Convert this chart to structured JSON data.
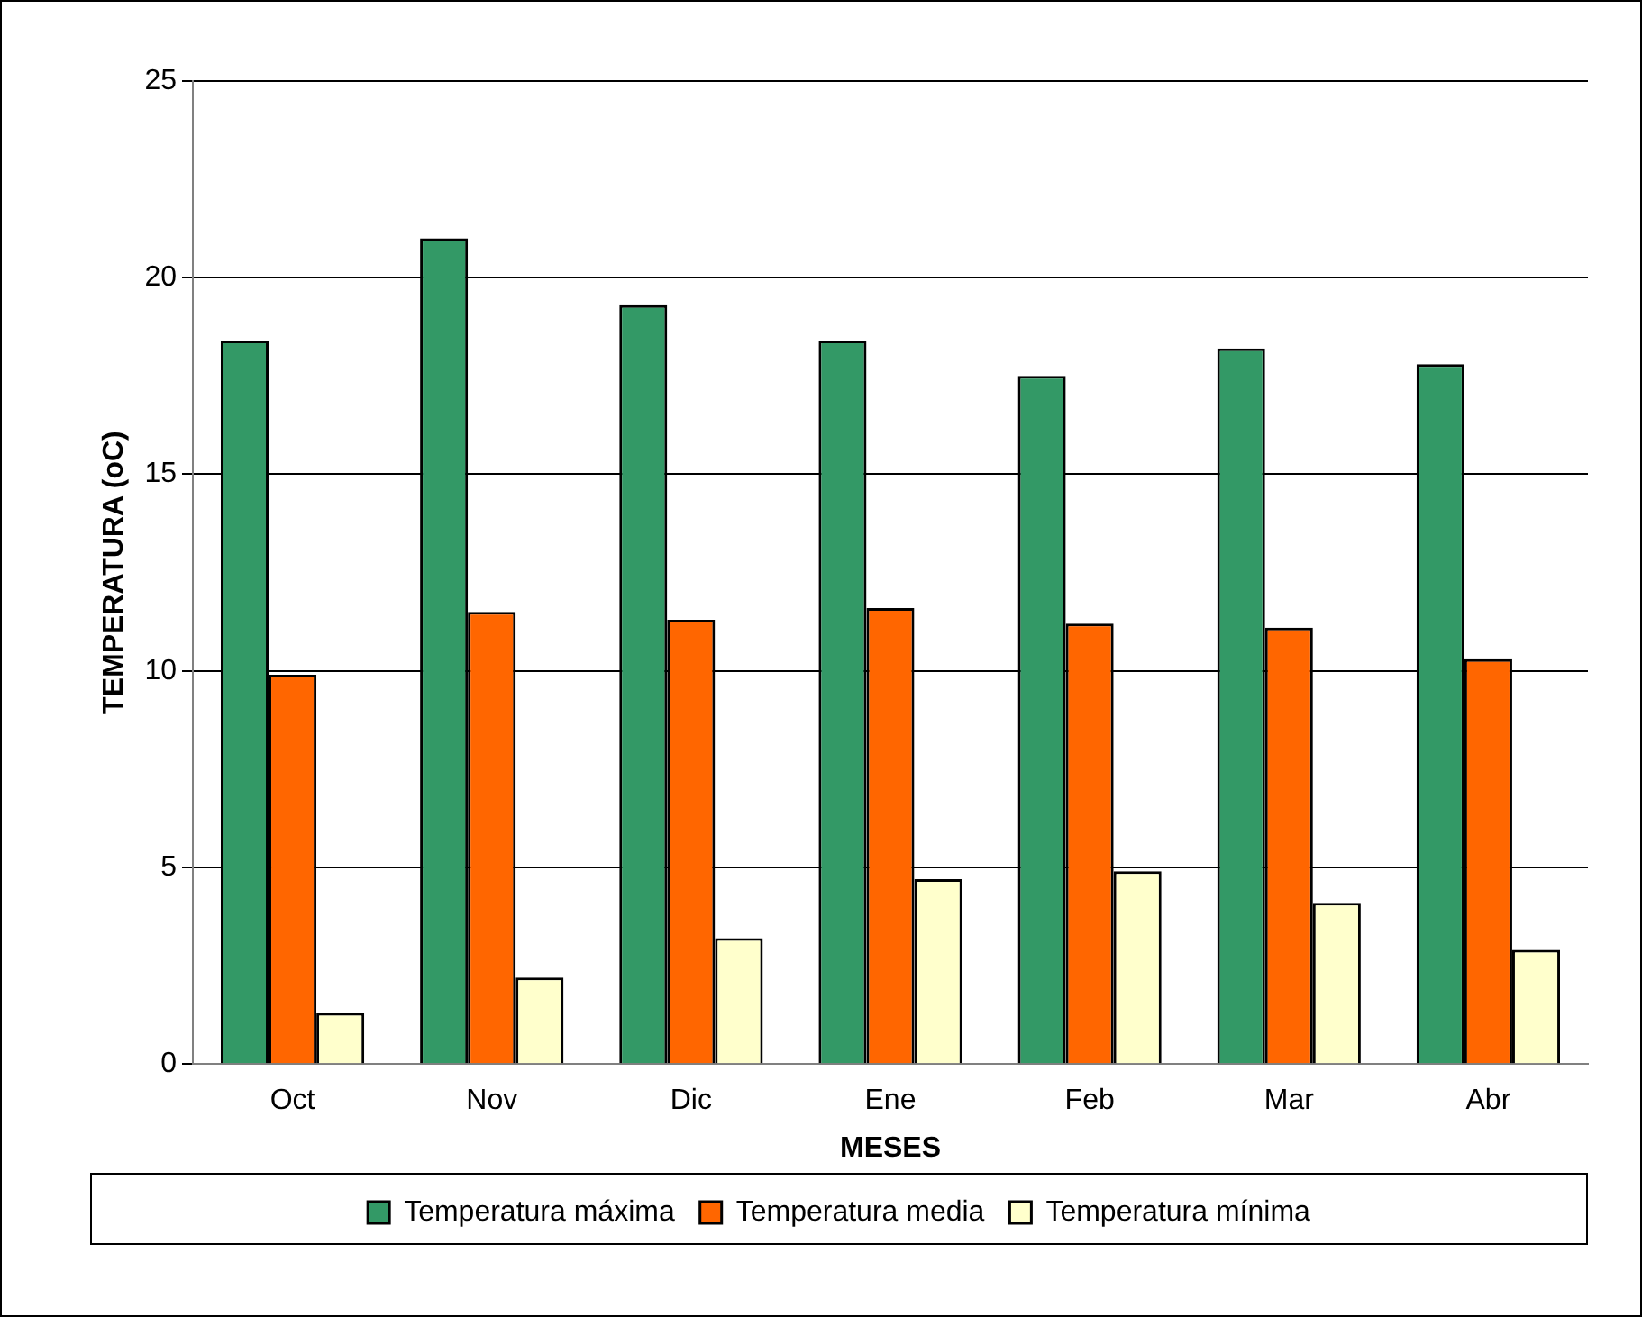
{
  "chart_data": {
    "type": "bar",
    "xlabel": "MESES",
    "ylabel": "TEMPERATURA (oC)",
    "categories": [
      "Oct",
      "Nov",
      "Dic",
      "Ene",
      "Feb",
      "Mar",
      "Abr"
    ],
    "series": [
      {
        "name": "Temperatura máxima",
        "color": "#339966",
        "values": [
          18.4,
          21.0,
          19.3,
          18.4,
          17.5,
          18.2,
          17.8
        ]
      },
      {
        "name": "Temperatura media",
        "color": "#ff6600",
        "values": [
          9.9,
          11.5,
          11.3,
          11.6,
          11.2,
          11.1,
          10.3
        ]
      },
      {
        "name": "Temperatura mínima",
        "color": "#ffffcc",
        "values": [
          1.3,
          2.2,
          3.2,
          4.7,
          4.9,
          4.1,
          2.9
        ]
      }
    ],
    "ylim": [
      0,
      25
    ],
    "yticks": [
      0,
      5,
      10,
      15,
      20,
      25
    ],
    "grid": "y",
    "legend": "bottom"
  }
}
